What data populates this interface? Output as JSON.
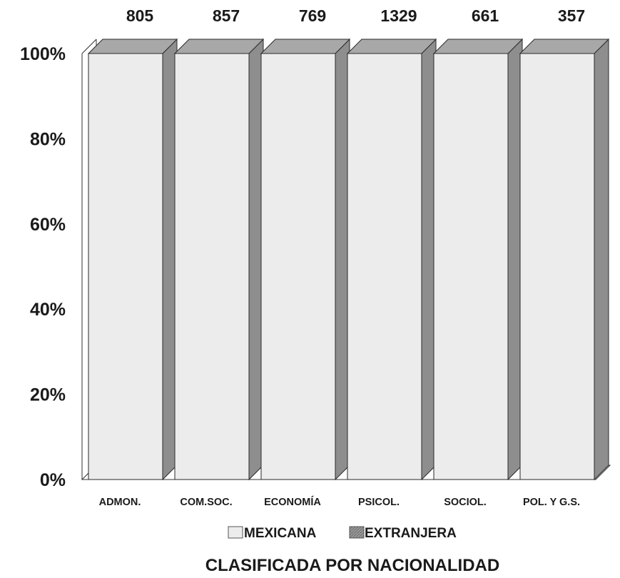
{
  "chart_data": {
    "type": "bar",
    "stacked": "percent",
    "style": "3d",
    "title": "CLASIFICADA POR NACIONALIDAD",
    "categories": [
      "ADMON.",
      "COM.SOC.",
      "ECONOMÍA",
      "PSICOL.",
      "SOCIOL.",
      "POL. Y G.S."
    ],
    "totals": [
      "805",
      "857",
      "769",
      "1329",
      "661",
      "357"
    ],
    "y_ticks": [
      "0%",
      "20%",
      "40%",
      "60%",
      "80%",
      "100%"
    ],
    "ylim": [
      0,
      100
    ],
    "series": [
      {
        "name": "MEXICANA",
        "values": [
          100,
          100,
          100,
          100,
          100,
          100
        ],
        "color": "#ececec"
      },
      {
        "name": "EXTRANJERA",
        "values": [
          0,
          0,
          0,
          0,
          0,
          0
        ],
        "color": "#8f8f8f"
      }
    ],
    "legend_position": "bottom",
    "grid": false
  }
}
